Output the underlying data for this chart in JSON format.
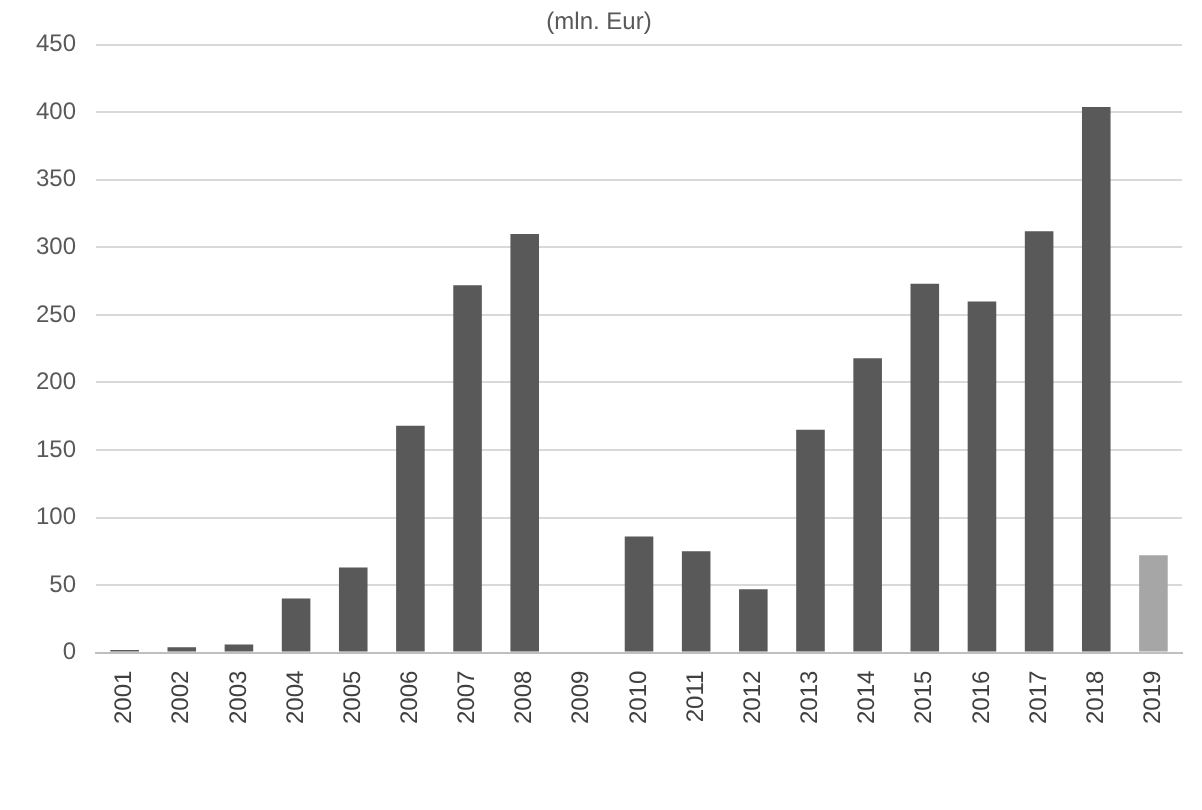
{
  "chart_data": {
    "type": "bar",
    "title": "(mln. Eur)",
    "categories": [
      "2001",
      "2002",
      "2003",
      "2004",
      "2005",
      "2006",
      "2007",
      "2008",
      "2009",
      "2010",
      "2011",
      "2012",
      "2013",
      "2014",
      "2015",
      "2016",
      "2017",
      "2018",
      "2019"
    ],
    "values": [
      2,
      4,
      6,
      40,
      63,
      168,
      272,
      310,
      0,
      86,
      75,
      47,
      165,
      218,
      273,
      260,
      312,
      404,
      72
    ],
    "colors": [
      "#595959",
      "#595959",
      "#595959",
      "#595959",
      "#595959",
      "#595959",
      "#595959",
      "#595959",
      "#595959",
      "#595959",
      "#595959",
      "#595959",
      "#595959",
      "#595959",
      "#595959",
      "#595959",
      "#595959",
      "#595959",
      "#a6a6a6"
    ],
    "ylim": [
      0,
      450
    ],
    "yticks": [
      0,
      50,
      100,
      150,
      200,
      250,
      300,
      350,
      400,
      450
    ],
    "grid": "y",
    "legend": false
  }
}
